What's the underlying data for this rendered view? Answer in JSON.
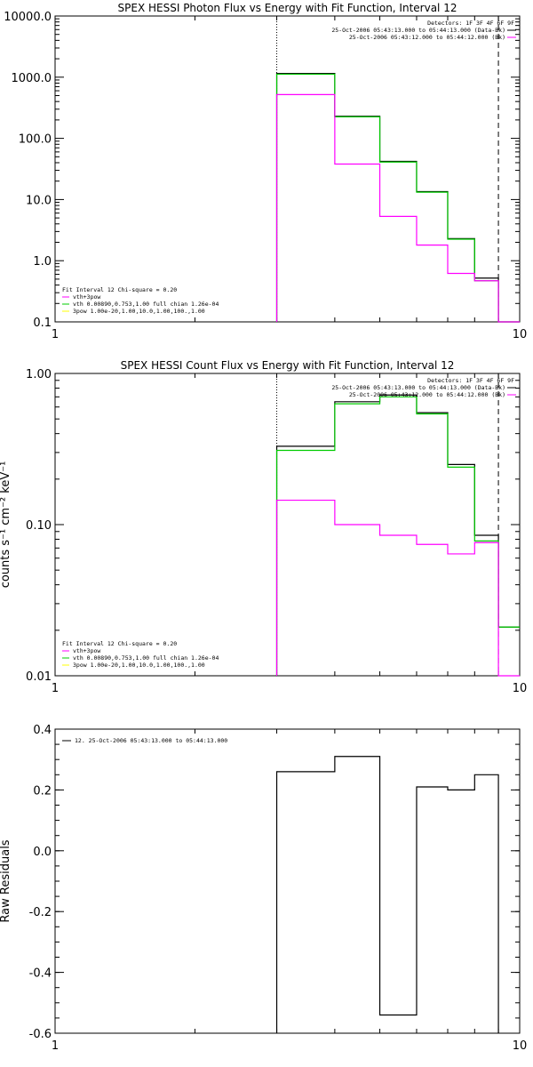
{
  "colors": {
    "model": "#000000",
    "vth_pow": "#ff00ff",
    "vth": "#00cc00",
    "pow": "#ffff00",
    "axes": "#000000"
  },
  "chart_data": [
    {
      "type": "line",
      "title": "SPEX HESSI Photon Flux vs Energy with Fit Function, Interval 12",
      "xlabel": "",
      "ylabel": "",
      "xscale": "log",
      "yscale": "log",
      "xlim": [
        1,
        10
      ],
      "ylim": [
        0.1,
        10000
      ],
      "x_ticks": [
        {
          "v": 1,
          "label": "1"
        },
        {
          "v": 10,
          "label": "10"
        }
      ],
      "y_ticks": [
        {
          "v": 0.1,
          "label": "0.1"
        },
        {
          "v": 1,
          "label": "1.0"
        },
        {
          "v": 10,
          "label": "10.0"
        },
        {
          "v": 100,
          "label": "100.0"
        },
        {
          "v": 1000,
          "label": "1000.0"
        },
        {
          "v": 10000,
          "label": "10000.0"
        }
      ],
      "vlines": [
        {
          "x": 3.0,
          "style": "dotted"
        },
        {
          "x": 9.0,
          "style": "dashed"
        }
      ],
      "bin_edges": [
        3.0,
        4.0,
        5.0,
        6.0,
        7.0,
        8.0,
        9.0,
        10.0
      ],
      "series": [
        {
          "color_key": "model",
          "values": [
            1150,
            230,
            42,
            13.5,
            2.3,
            0.52,
            0.1
          ]
        },
        {
          "color_key": "vth",
          "values": [
            1120,
            225,
            41,
            13.2,
            2.25,
            0.47,
            0.1
          ]
        },
        {
          "color_key": "vth_pow",
          "values": [
            520,
            38,
            5.3,
            1.8,
            0.62,
            0.47,
            0.1
          ]
        }
      ],
      "legend_topright": {
        "lines": [
          {
            "text": "Detectors: 1F 3F 4F 6F 9F",
            "color_key": null
          },
          {
            "text": "25-Oct-2006 05:43:13.000 to 05:44:13.000 (Data-Bk)",
            "color_key": "model"
          },
          {
            "text": "25-Oct-2006 05:43:12.000 to 05:44:12.000 (Bk)",
            "color_key": "vth_pow"
          }
        ]
      },
      "legend_bottomleft": {
        "header": "Fit Interval 12   Chi-square = 0.20",
        "lines": [
          {
            "text": "vth+3pow",
            "color_key": "vth_pow"
          },
          {
            "text": "vth 0.00890,0.753,1.00   full chian 1.26e-04",
            "color_key": "vth"
          },
          {
            "text": "3pow 1.00e-20,1.00,10.0,1.00,100.,1.00",
            "color_key": "pow"
          }
        ]
      }
    },
    {
      "type": "line",
      "title": "SPEX HESSI Count Flux vs Energy with Fit Function, Interval 12",
      "xlabel": "",
      "ylabel": "counts s⁻¹ cm⁻² keV⁻¹",
      "xscale": "log",
      "yscale": "log",
      "xlim": [
        1,
        10
      ],
      "ylim": [
        0.01,
        1.0
      ],
      "x_ticks": [
        {
          "v": 1,
          "label": "1"
        },
        {
          "v": 10,
          "label": "10"
        }
      ],
      "y_ticks": [
        {
          "v": 0.01,
          "label": "0.01"
        },
        {
          "v": 0.1,
          "label": "0.10"
        },
        {
          "v": 1,
          "label": "1.00"
        }
      ],
      "vlines": [
        {
          "x": 3.0,
          "style": "dotted"
        },
        {
          "x": 9.0,
          "style": "dashed"
        }
      ],
      "bin_edges": [
        3.0,
        4.0,
        5.0,
        6.0,
        7.0,
        8.0,
        9.0,
        10.0
      ],
      "series": [
        {
          "color_key": "model",
          "values": [
            0.33,
            0.65,
            0.72,
            0.55,
            0.25,
            0.085,
            0.021
          ]
        },
        {
          "color_key": "vth",
          "values": [
            0.31,
            0.63,
            0.7,
            0.54,
            0.24,
            0.078,
            0.021
          ]
        },
        {
          "color_key": "vth_pow",
          "values": [
            0.145,
            0.1,
            0.085,
            0.074,
            0.064,
            0.076,
            0.01
          ]
        }
      ],
      "legend_topright": {
        "lines": [
          {
            "text": "Detectors: 1F 3F 4F 6F 9F",
            "color_key": null
          },
          {
            "text": "25-Oct-2006 05:43:13.000 to 05:44:13.000 (Data-Bk)",
            "color_key": "model"
          },
          {
            "text": "25-Oct-2006 05:43:12.000 to 05:44:12.000 (Bk)",
            "color_key": "vth_pow"
          }
        ]
      },
      "legend_bottomleft": {
        "header": "Fit Interval 12   Chi-square = 0.20",
        "lines": [
          {
            "text": "vth+3pow",
            "color_key": "vth_pow"
          },
          {
            "text": "vth 0.00890,0.753,1.00   full chian 1.26e-04",
            "color_key": "vth"
          },
          {
            "text": "3pow 1.00e-20,1.00,10.0,1.00,100.,1.00",
            "color_key": "pow"
          }
        ]
      }
    },
    {
      "type": "line",
      "title": "",
      "xlabel": "",
      "ylabel": "Raw Residuals",
      "xscale": "log",
      "yscale": "linear",
      "xlim": [
        1,
        10
      ],
      "ylim": [
        -0.6,
        0.4
      ],
      "x_ticks": [
        {
          "v": 1,
          "label": "1"
        },
        {
          "v": 10,
          "label": "10"
        }
      ],
      "y_ticks": [
        {
          "v": -0.6,
          "label": "-0.6"
        },
        {
          "v": -0.4,
          "label": "-0.4"
        },
        {
          "v": -0.2,
          "label": "-0.2"
        },
        {
          "v": 0.0,
          "label": "0.0"
        },
        {
          "v": 0.2,
          "label": "0.2"
        },
        {
          "v": 0.4,
          "label": "0.4"
        }
      ],
      "vlines": [],
      "bin_edges": [
        3.0,
        4.0,
        5.0,
        6.0,
        7.0,
        8.0,
        9.0
      ],
      "series": [
        {
          "color_key": "model",
          "values": [
            0.26,
            0.31,
            -0.54,
            0.21,
            0.2,
            0.25
          ]
        }
      ],
      "drop_to_bottom": true,
      "legend_topright": {
        "lines": []
      },
      "legend_topleft": {
        "lines": [
          {
            "text": "12. 25-Oct-2006 05:43:13.000 to 05:44:13.000",
            "color_key": "model"
          }
        ]
      }
    }
  ]
}
